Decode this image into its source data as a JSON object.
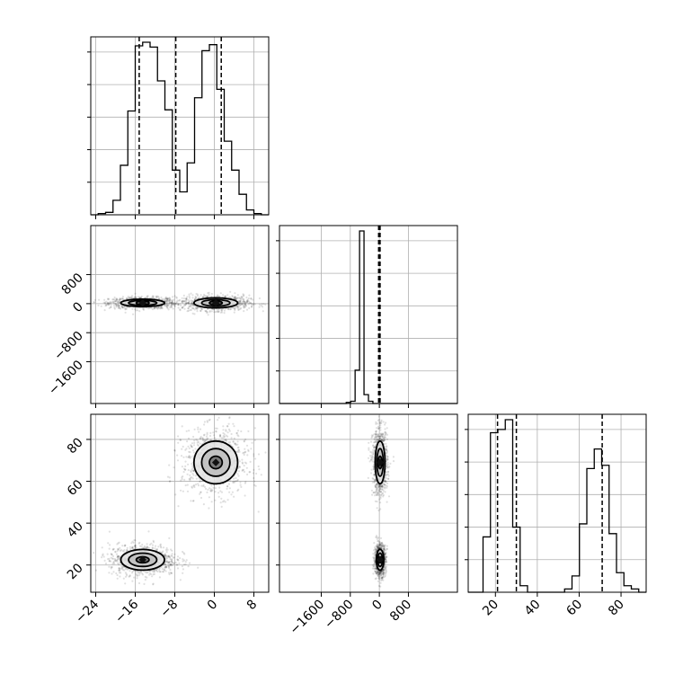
{
  "chart_data": {
    "type": "corner",
    "n_params": 3,
    "grid": true,
    "ranges": [
      [
        -25,
        11
      ],
      [
        -2750,
        2150
      ],
      [
        7,
        92
      ]
    ],
    "ticks": [
      {
        "values": [
          -24,
          -16,
          -8,
          0,
          8
        ],
        "labels": [
          "−24",
          "−16",
          "−8",
          "0",
          "8"
        ]
      },
      {
        "values": [
          -1600,
          -800,
          0,
          800
        ],
        "labels": [
          "−1600",
          "−800",
          "0",
          "800"
        ]
      },
      {
        "values": [
          20,
          40,
          60,
          80
        ],
        "labels": [
          "20",
          "40",
          "60",
          "80"
        ]
      }
    ],
    "quantiles": [
      [
        -15.2,
        -7.8,
        1.4
      ],
      [
        -20,
        0,
        20
      ],
      [
        21,
        30,
        71
      ]
    ],
    "histograms": [
      {
        "edges_min": -25,
        "edges_max": 11,
        "counts": [
          0,
          1,
          2,
          12,
          41,
          86,
          140,
          143,
          139,
          111,
          87,
          37,
          19,
          43,
          97,
          136,
          141,
          104,
          61,
          37,
          17,
          4,
          1,
          0
        ]
      },
      {
        "edges_min": -2750,
        "edges_max": 2150,
        "counts": [
          0,
          0,
          0,
          0,
          0,
          0,
          0,
          0,
          0,
          0,
          0,
          0,
          0,
          0,
          0,
          1,
          2,
          30,
          155,
          8,
          2,
          0,
          0,
          0,
          0,
          0,
          0,
          0,
          0,
          0,
          0,
          0,
          0,
          0,
          0,
          0,
          0,
          0,
          0,
          0
        ]
      },
      {
        "edges_min": 7,
        "edges_max": 92,
        "counts": [
          0,
          0,
          17,
          49,
          50,
          53,
          20,
          2,
          0,
          0,
          0,
          0,
          0,
          1,
          5,
          21,
          38,
          44,
          39,
          18,
          6,
          2,
          1,
          0
        ]
      }
    ],
    "modes": [
      {
        "centers": [
          -14.5,
          20,
          22.5
        ],
        "sd": [
          2.6,
          60,
          2.9
        ],
        "weight": 0.5
      },
      {
        "centers": [
          0.3,
          20,
          69
        ],
        "sd": [
          2.6,
          80,
          6
        ],
        "weight": 0.5
      }
    ]
  }
}
